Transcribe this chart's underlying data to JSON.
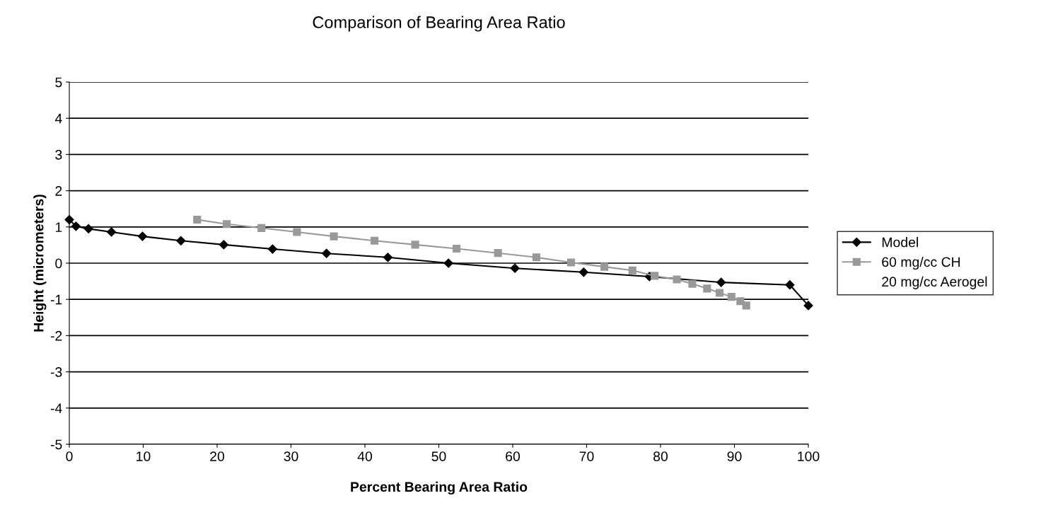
{
  "chart_data": {
    "type": "line",
    "title": "Comparison of Bearing Area Ratio",
    "xlabel": "Percent Bearing Area Ratio",
    "ylabel": "Height (micrometers)",
    "xlim": [
      0,
      100
    ],
    "xticks": [
      0,
      10,
      20,
      30,
      40,
      50,
      60,
      70,
      80,
      90,
      100
    ],
    "ylim": [
      -5,
      5
    ],
    "yticks": [
      -5,
      -4,
      -3,
      -2,
      -1,
      0,
      1,
      2,
      3,
      4,
      5
    ],
    "grid": "y",
    "legend": "right",
    "series": [
      {
        "name": "Model",
        "color": "#000000",
        "marker": "diamond",
        "x": [
          0,
          0.9,
          2.6,
          5.7,
          9.9,
          15.1,
          20.9,
          27.5,
          34.8,
          43.1,
          51.3,
          60.3,
          69.6,
          78.5,
          88.2,
          97.5,
          100
        ],
        "values": [
          1.2,
          1.02,
          0.95,
          0.86,
          0.74,
          0.62,
          0.51,
          0.39,
          0.27,
          0.16,
          0.0,
          -0.14,
          -0.25,
          -0.37,
          -0.53,
          -0.6,
          -1.17
        ]
      },
      {
        "name": "60 mg/cc CH",
        "color": "#999999",
        "marker": "square",
        "x": [
          17.3,
          21.3,
          26.0,
          30.8,
          35.8,
          41.3,
          46.8,
          52.4,
          58.0,
          63.2,
          67.9,
          72.4,
          76.2,
          79.2,
          82.2,
          84.3,
          86.3,
          88.0,
          89.6,
          90.8,
          91.6
        ],
        "values": [
          1.2,
          1.08,
          0.97,
          0.86,
          0.74,
          0.62,
          0.51,
          0.4,
          0.28,
          0.16,
          0.02,
          -0.1,
          -0.2,
          -0.35,
          -0.45,
          -0.57,
          -0.7,
          -0.82,
          -0.93,
          -1.05,
          -1.17
        ]
      },
      {
        "name": "20 mg/cc Aerogel",
        "marker": "none"
      }
    ]
  }
}
